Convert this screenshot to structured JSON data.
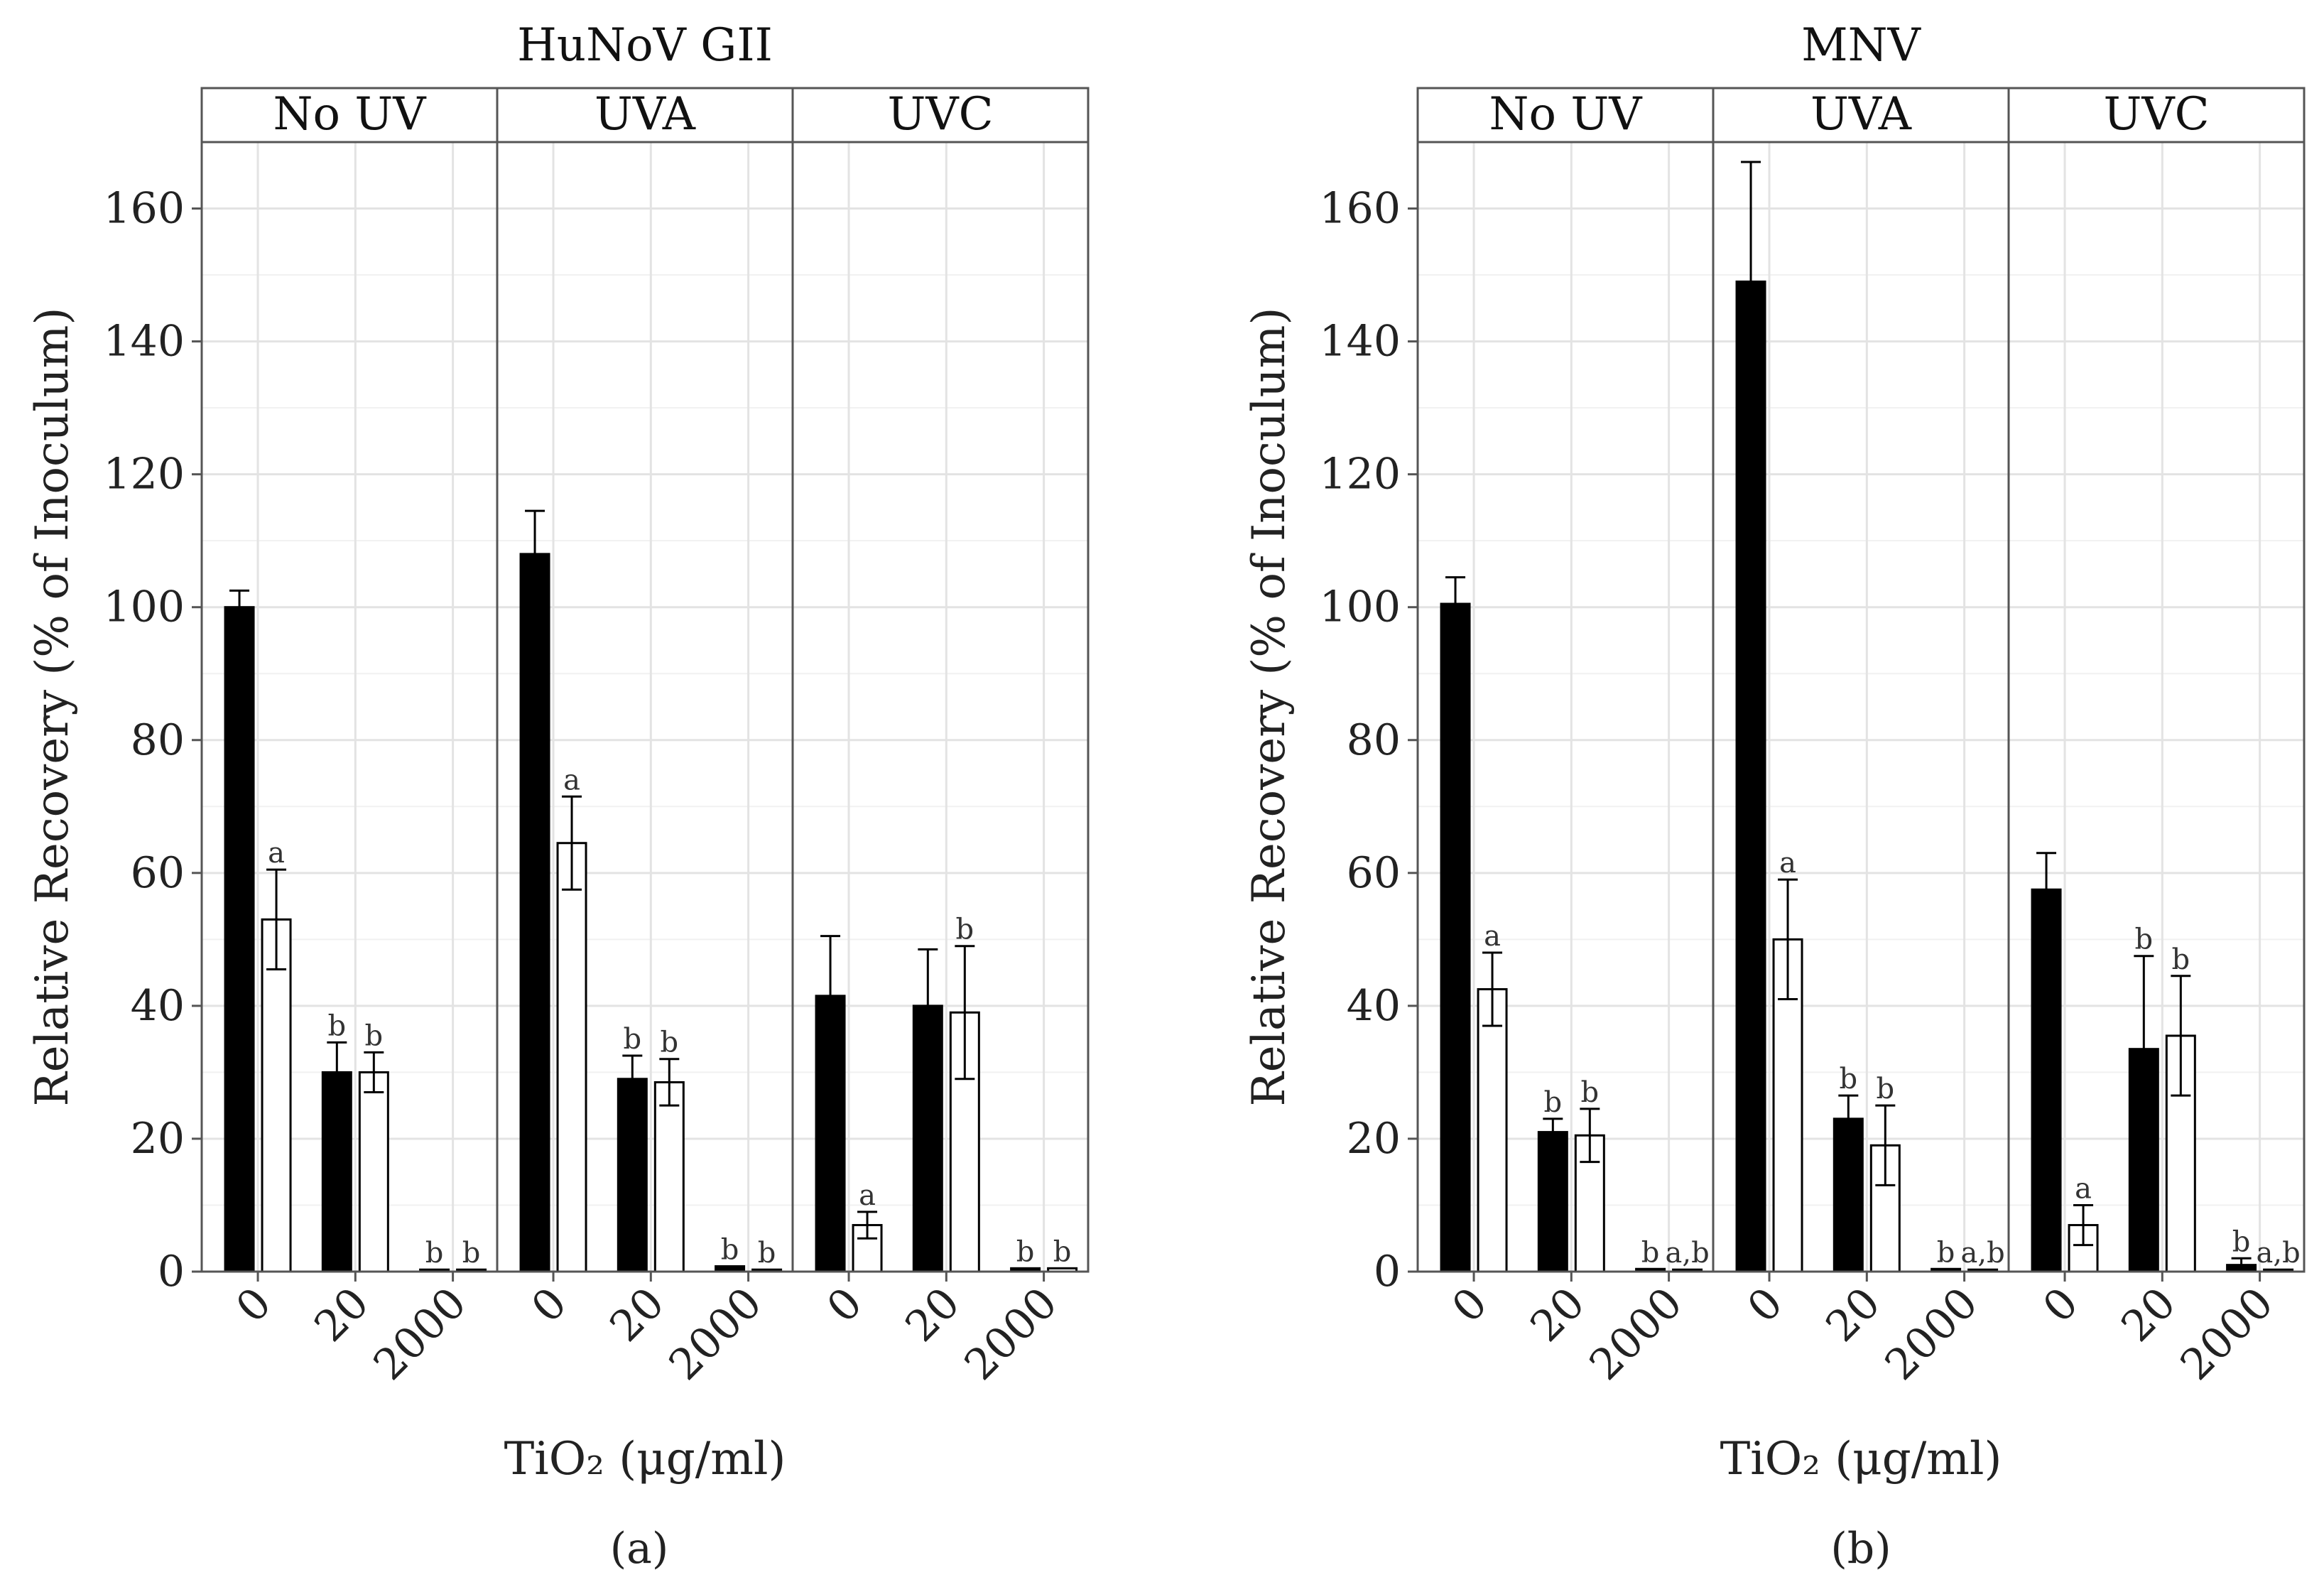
{
  "figure": {
    "caption_a": "(a)",
    "caption_b": "(b)"
  },
  "chart_data": [
    {
      "type": "bar",
      "title": "HuNoV GII",
      "xlabel": "TiO₂ (μg/ml)",
      "ylabel": "Relative Recovery (% of Inoculum)",
      "ylim": [
        0,
        170
      ],
      "yticks": [
        0,
        20,
        40,
        60,
        80,
        100,
        120,
        140,
        160
      ],
      "grid": true,
      "facets": [
        "No UV",
        "UVA",
        "UVC"
      ],
      "categories": [
        "0",
        "20",
        "2000"
      ],
      "series": [
        {
          "name": "filled",
          "color": "#000000",
          "values": [
            [
              100,
              30,
              0.3
            ],
            [
              108,
              29,
              0.8
            ],
            [
              41.5,
              40,
              0.5
            ]
          ],
          "errors": [
            [
              2.5,
              4.5,
              0
            ],
            [
              6.5,
              3.5,
              0
            ],
            [
              9,
              8.5,
              0
            ]
          ],
          "labels": [
            [
              "",
              "b",
              "b"
            ],
            [
              "",
              "b",
              "b"
            ],
            [
              "",
              "",
              "b"
            ]
          ]
        },
        {
          "name": "open",
          "color": "#ffffff",
          "values": [
            [
              53,
              30,
              0.3
            ],
            [
              64.5,
              28.5,
              0.3
            ],
            [
              7,
              39,
              0.5
            ]
          ],
          "errors": [
            [
              7.5,
              3,
              0
            ],
            [
              7,
              3.5,
              0
            ],
            [
              2,
              10,
              0
            ]
          ],
          "labels": [
            [
              "a",
              "b",
              "b"
            ],
            [
              "a",
              "b",
              "b"
            ],
            [
              "a",
              "b",
              "b"
            ]
          ]
        }
      ]
    },
    {
      "type": "bar",
      "title": "MNV",
      "xlabel": "TiO₂ (μg/ml)",
      "ylabel": "Relative Recovery (% of Inoculum)",
      "ylim": [
        0,
        170
      ],
      "yticks": [
        0,
        20,
        40,
        60,
        80,
        100,
        120,
        140,
        160
      ],
      "grid": true,
      "facets": [
        "No UV",
        "UVA",
        "UVC"
      ],
      "categories": [
        "0",
        "20",
        "2000"
      ],
      "series": [
        {
          "name": "filled",
          "color": "#000000",
          "values": [
            [
              100.5,
              21,
              0.4
            ],
            [
              149,
              23,
              0.4
            ],
            [
              57.5,
              33.5,
              1
            ]
          ],
          "errors": [
            [
              4,
              2,
              0
            ],
            [
              18,
              3.5,
              0
            ],
            [
              5.5,
              14,
              1
            ]
          ],
          "labels": [
            [
              "",
              "b",
              "b"
            ],
            [
              "",
              "b",
              "b"
            ],
            [
              "",
              "b",
              "b"
            ]
          ]
        },
        {
          "name": "open",
          "color": "#ffffff",
          "values": [
            [
              42.5,
              20.5,
              0.3
            ],
            [
              50,
              19,
              0.3
            ],
            [
              7,
              35.5,
              0.3
            ]
          ],
          "errors": [
            [
              5.5,
              4,
              0
            ],
            [
              9,
              6,
              0
            ],
            [
              3,
              9,
              0
            ]
          ],
          "labels": [
            [
              "a",
              "b",
              "a,b"
            ],
            [
              "a",
              "b",
              "a,b"
            ],
            [
              "a",
              "b",
              "a,b"
            ]
          ]
        }
      ]
    }
  ]
}
